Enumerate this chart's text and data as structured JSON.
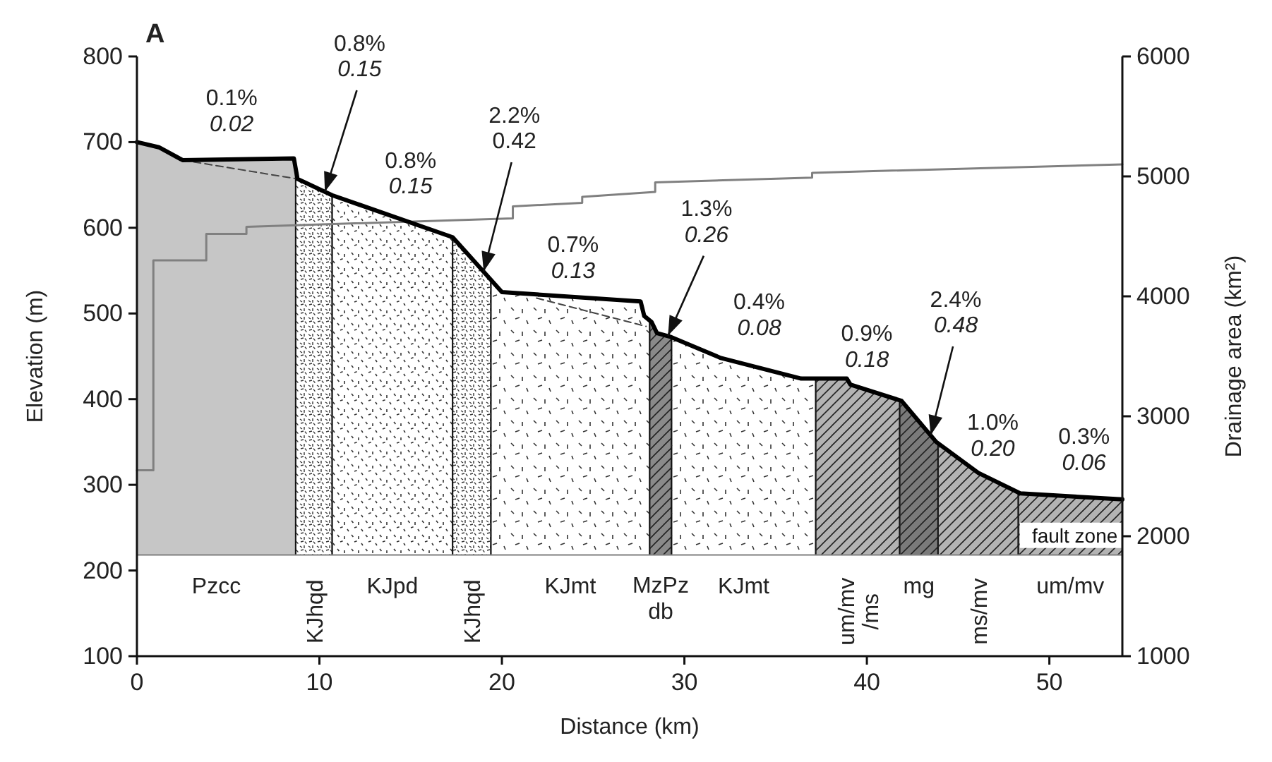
{
  "chart_data": {
    "type": "line",
    "title": "A",
    "xlabel": "Distance (km)",
    "ylabel": "Elevation (m)",
    "y2label": "Drainage area (km²)",
    "xlim": [
      0,
      54
    ],
    "xticks": [
      0,
      10,
      20,
      30,
      40,
      50
    ],
    "ylim": [
      100,
      800
    ],
    "yticks": [
      100,
      200,
      300,
      400,
      500,
      600,
      700,
      800
    ],
    "y2lim": [
      1000,
      6000
    ],
    "y2ticks": [
      1000,
      2000,
      3000,
      4000,
      5000,
      6000
    ],
    "series": [
      {
        "type": "line",
        "color": "#000000",
        "x": [
          0,
          1.2,
          2.5,
          8.6,
          8.8,
          10.7,
          17.3,
          20.0,
          27.6,
          27.8,
          28.2,
          28.5,
          29.2,
          32.0,
          36.4,
          38.9,
          39.1,
          41.9,
          43.8,
          46.1,
          48.4,
          54
        ],
        "values": [
          700,
          694,
          679,
          681,
          657,
          638,
          589,
          525,
          514,
          497,
          490,
          477,
          473,
          448,
          424,
          424,
          417,
          398,
          350,
          314,
          290,
          283
        ]
      },
      {
        "type": "line",
        "color": "#444444",
        "line_style": "dashed",
        "x": [
          2.5,
          8.8,
          15,
          21.9,
          27.9
        ],
        "values": [
          679,
          657,
          null,
          518,
          485
        ]
      },
      {
        "type": "line",
        "color": "#808080",
        "axis": "y2",
        "x": [
          0,
          0.9,
          0.9,
          3.8,
          3.8,
          6.0,
          6.0,
          20.6,
          20.6,
          24.4,
          24.4,
          28.4,
          28.4,
          37.0,
          37.0,
          54
        ],
        "values": [
          2550,
          2550,
          4300,
          4300,
          4520,
          4520,
          4580,
          4650,
          4750,
          4780,
          4830,
          4870,
          4950,
          4990,
          5030,
          5100
        ]
      }
    ],
    "bands": [
      {
        "axis": "x",
        "from": 0,
        "to": 8.7,
        "label": "Pzcc",
        "color": "#c6c6c6"
      },
      {
        "axis": "x",
        "from": 8.7,
        "to": 10.7,
        "label": "KJhqd",
        "color": "#ffffff"
      },
      {
        "axis": "x",
        "from": 10.7,
        "to": 17.3,
        "label": "KJpd",
        "color": "#ffffff"
      },
      {
        "axis": "x",
        "from": 17.3,
        "to": 19.4,
        "label": "KJhqd",
        "color": "#ffffff"
      },
      {
        "axis": "x",
        "from": 19.4,
        "to": 28.1,
        "label": "KJmt",
        "color": "#ffffff"
      },
      {
        "axis": "x",
        "from": 28.1,
        "to": 29.3,
        "label": "MzPz\ndb",
        "color": "#8a8a8a"
      },
      {
        "axis": "x",
        "from": 29.3,
        "to": 37.2,
        "label": "KJmt",
        "color": "#ffffff"
      },
      {
        "axis": "x",
        "from": 37.2,
        "to": 41.8,
        "label": "um/mv\n/ms",
        "color": "#b3b3b3"
      },
      {
        "axis": "x",
        "from": 41.8,
        "to": 43.9,
        "label": "mg",
        "color": "#7a7a7a"
      },
      {
        "axis": "x",
        "from": 43.9,
        "to": 48.3,
        "label": "ms/mv",
        "color": "#b3b3b3"
      },
      {
        "axis": "x",
        "from": 48.3,
        "to": 54,
        "label": "um/mv",
        "color": "#b3b3b3"
      }
    ],
    "ref_lines": [
      {
        "axis": "y",
        "value": 218,
        "color": "#9a9a9a"
      }
    ],
    "annotations": [
      {
        "text": "0.1%\n0.02",
        "x": 5.5,
        "y": 680
      },
      {
        "text": "0.8%\n0.15",
        "x": 10.3,
        "y": 642
      },
      {
        "text": "0.8%\n0.15",
        "x": 15.0,
        "y": 604
      },
      {
        "text": "2.2%\n0.42",
        "x": 19.0,
        "y": 549
      },
      {
        "text": "0.7%\n0.13",
        "x": 23.9,
        "y": 519
      },
      {
        "text": "1.3%\n0.26",
        "x": 29.1,
        "y": 474
      },
      {
        "text": "0.4%\n0.08",
        "x": 34.1,
        "y": 437
      },
      {
        "text": "0.9%\n0.18",
        "x": 40.0,
        "y": 410
      },
      {
        "text": "2.4%\n0.48",
        "x": 43.5,
        "y": 358
      },
      {
        "text": "1.0%\n0.20",
        "x": 46.9,
        "y": 306
      },
      {
        "text": "0.3%\n0.06",
        "x": 51.9,
        "y": 283
      },
      "fault zone"
    ]
  }
}
